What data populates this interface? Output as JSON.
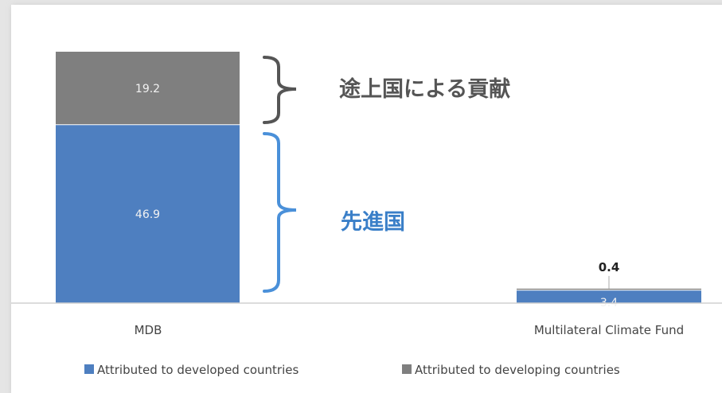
{
  "chart_data": {
    "type": "bar",
    "stacked": true,
    "categories": [
      "MDB",
      "Multilateral Climate Fund"
    ],
    "series": [
      {
        "name": "Attributed to developed countries",
        "values": [
          46.9,
          3.4
        ],
        "color": "#4e7fc0"
      },
      {
        "name": "Attributed to developing countries",
        "values": [
          19.2,
          0.4
        ],
        "color": "#7f7f7f"
      }
    ],
    "data_labels": {
      "MDB": [
        "46.9",
        "19.2"
      ],
      "Multilateral Climate Fund": [
        "3.4",
        "0.4"
      ]
    },
    "legend_position": "bottom",
    "grid": false
  },
  "annotations": {
    "developing": "途上国による貢献",
    "developed": "先進国"
  },
  "colors": {
    "gray_brace": "#555555",
    "blue_brace": "#4a90d9",
    "axis": "#d0d0d0"
  }
}
